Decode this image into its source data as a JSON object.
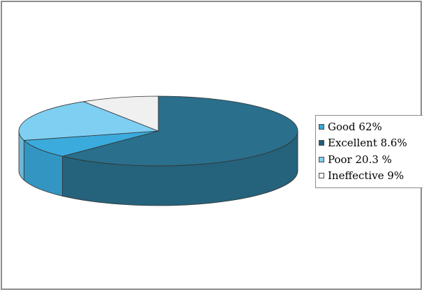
{
  "chart_data": {
    "type": "pie",
    "style": "3d",
    "categories": [
      "Good",
      "Excellent",
      "Poor",
      "Ineffective"
    ],
    "values": [
      62,
      8.6,
      20.3,
      9
    ],
    "legend_labels": [
      "Good 62%",
      "Excellent 8.6%",
      "Poor 20.3 %",
      "Ineffective 9%"
    ],
    "colors": {
      "Good": "#2a6f8c",
      "Excellent": "#3aabdc",
      "Poor": "#7fcff2",
      "Ineffective": "#f0f0f0"
    },
    "legend_swatch_colors": [
      "#33a9dc",
      "#1e5f7a",
      "#7fcff2",
      "#ffffff"
    ],
    "legend_position": "right",
    "title": ""
  }
}
